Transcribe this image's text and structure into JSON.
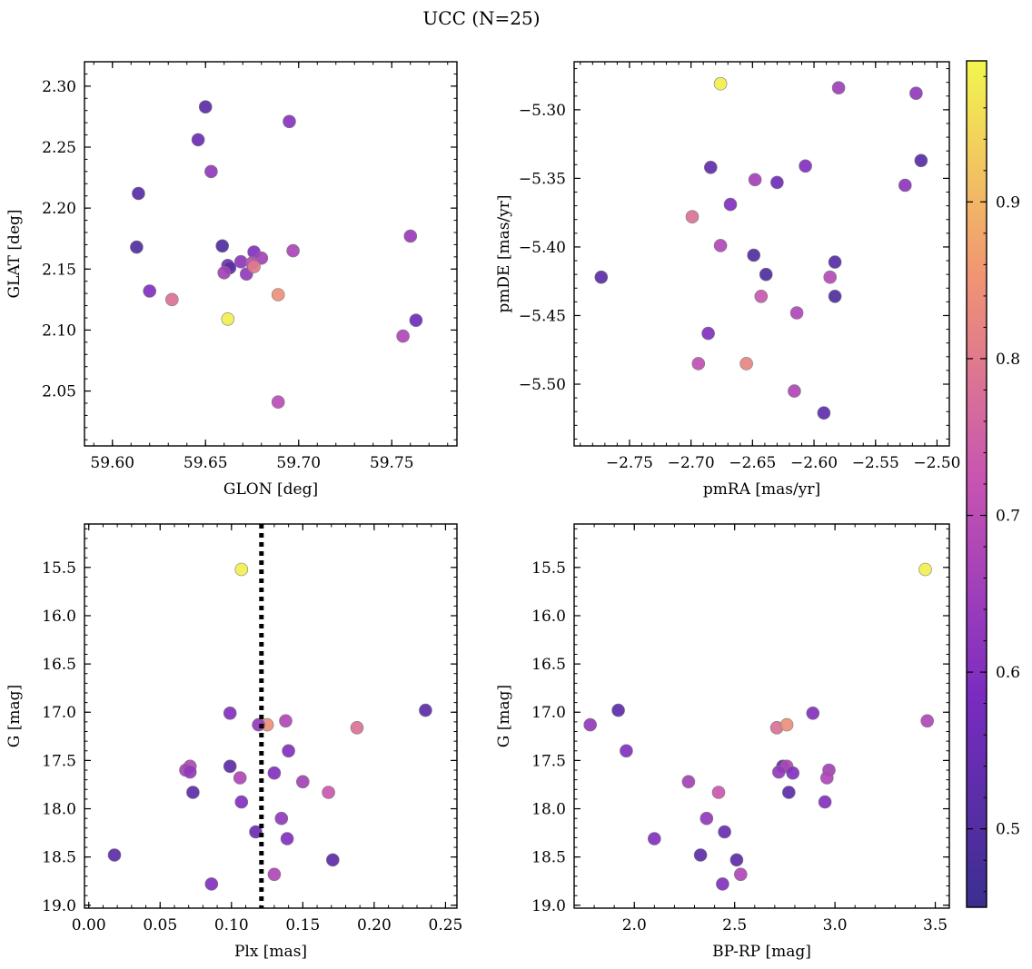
{
  "figure": {
    "title": "UCC (N=25)"
  },
  "colorbar": {
    "colormap": "plasma",
    "range": [
      0.45,
      0.99
    ],
    "ticks": [
      0.5,
      0.6,
      0.7,
      0.8,
      0.9
    ],
    "tick_labels": [
      "0.5",
      "0.6",
      "0.7",
      "0.8",
      "0.9"
    ],
    "colors": [
      "#3b2f8f",
      "#7a2cc0",
      "#c653b3",
      "#f19672",
      "#f2f64e"
    ]
  },
  "chart_data": [
    {
      "type": "scatter",
      "id": "glon-glat",
      "xlabel": "GLON [deg]",
      "ylabel": "GLAT [deg]",
      "xlim": [
        59.585,
        59.785
      ],
      "ylim": [
        2.005,
        2.32
      ],
      "xticks": [
        59.6,
        59.65,
        59.7,
        59.75
      ],
      "xtick_labels": [
        "59.60",
        "59.65",
        "59.70",
        "59.75"
      ],
      "yticks": [
        2.05,
        2.1,
        2.15,
        2.2,
        2.25,
        2.3
      ],
      "ytick_labels": [
        "2.05",
        "2.10",
        "2.15",
        "2.20",
        "2.25",
        "2.30"
      ],
      "points": [
        {
          "x": 59.65,
          "y": 2.283,
          "c": 0.52
        },
        {
          "x": 59.646,
          "y": 2.256,
          "c": 0.55
        },
        {
          "x": 59.695,
          "y": 2.271,
          "c": 0.61
        },
        {
          "x": 59.653,
          "y": 2.23,
          "c": 0.63
        },
        {
          "x": 59.614,
          "y": 2.212,
          "c": 0.51
        },
        {
          "x": 59.613,
          "y": 2.168,
          "c": 0.5
        },
        {
          "x": 59.659,
          "y": 2.169,
          "c": 0.49
        },
        {
          "x": 59.676,
          "y": 2.164,
          "c": 0.6
        },
        {
          "x": 59.68,
          "y": 2.159,
          "c": 0.66
        },
        {
          "x": 59.697,
          "y": 2.165,
          "c": 0.67
        },
        {
          "x": 59.669,
          "y": 2.156,
          "c": 0.62
        },
        {
          "x": 59.662,
          "y": 2.153,
          "c": 0.56
        },
        {
          "x": 59.663,
          "y": 2.151,
          "c": 0.52
        },
        {
          "x": 59.66,
          "y": 2.147,
          "c": 0.66
        },
        {
          "x": 59.672,
          "y": 2.146,
          "c": 0.63
        },
        {
          "x": 59.675,
          "y": 2.155,
          "c": 0.7
        },
        {
          "x": 59.676,
          "y": 2.152,
          "c": 0.8
        },
        {
          "x": 59.62,
          "y": 2.132,
          "c": 0.6
        },
        {
          "x": 59.632,
          "y": 2.125,
          "c": 0.78
        },
        {
          "x": 59.689,
          "y": 2.129,
          "c": 0.84
        },
        {
          "x": 59.662,
          "y": 2.109,
          "c": 0.98
        },
        {
          "x": 59.76,
          "y": 2.177,
          "c": 0.64
        },
        {
          "x": 59.763,
          "y": 2.108,
          "c": 0.56
        },
        {
          "x": 59.756,
          "y": 2.095,
          "c": 0.68
        },
        {
          "x": 59.689,
          "y": 2.041,
          "c": 0.7
        }
      ]
    },
    {
      "type": "scatter",
      "id": "pmra-pmde",
      "xlabel": "pmRA [mas/yr]",
      "ylabel": "pmDE [mas/yr]",
      "xlim": [
        -2.795,
        -2.49
      ],
      "ylim": [
        -5.545,
        -5.265
      ],
      "xticks": [
        -2.75,
        -2.7,
        -2.65,
        -2.6,
        -2.55,
        -2.5
      ],
      "xtick_labels": [
        "−2.75",
        "−2.70",
        "−2.65",
        "−2.60",
        "−2.55",
        "−2.50"
      ],
      "yticks": [
        -5.5,
        -5.45,
        -5.4,
        -5.35,
        -5.3
      ],
      "ytick_labels": [
        "−5.50",
        "−5.45",
        "−5.40",
        "−5.35",
        "−5.30"
      ],
      "points": [
        {
          "x": -2.676,
          "y": -5.281,
          "c": 0.98
        },
        {
          "x": -2.58,
          "y": -5.284,
          "c": 0.65
        },
        {
          "x": -2.517,
          "y": -5.288,
          "c": 0.63
        },
        {
          "x": -2.513,
          "y": -5.337,
          "c": 0.51
        },
        {
          "x": -2.526,
          "y": -5.355,
          "c": 0.62
        },
        {
          "x": -2.684,
          "y": -5.342,
          "c": 0.53
        },
        {
          "x": -2.607,
          "y": -5.341,
          "c": 0.6
        },
        {
          "x": -2.648,
          "y": -5.351,
          "c": 0.66
        },
        {
          "x": -2.63,
          "y": -5.353,
          "c": 0.56
        },
        {
          "x": -2.668,
          "y": -5.369,
          "c": 0.6
        },
        {
          "x": -2.699,
          "y": -5.378,
          "c": 0.78
        },
        {
          "x": -2.676,
          "y": -5.399,
          "c": 0.68
        },
        {
          "x": -2.649,
          "y": -5.406,
          "c": 0.5
        },
        {
          "x": -2.583,
          "y": -5.411,
          "c": 0.51
        },
        {
          "x": -2.639,
          "y": -5.42,
          "c": 0.49
        },
        {
          "x": -2.773,
          "y": -5.422,
          "c": 0.52
        },
        {
          "x": -2.587,
          "y": -5.422,
          "c": 0.69
        },
        {
          "x": -2.583,
          "y": -5.436,
          "c": 0.49
        },
        {
          "x": -2.643,
          "y": -5.436,
          "c": 0.73
        },
        {
          "x": -2.614,
          "y": -5.448,
          "c": 0.68
        },
        {
          "x": -2.686,
          "y": -5.463,
          "c": 0.6
        },
        {
          "x": -2.694,
          "y": -5.485,
          "c": 0.71
        },
        {
          "x": -2.655,
          "y": -5.485,
          "c": 0.82
        },
        {
          "x": -2.616,
          "y": -5.505,
          "c": 0.68
        },
        {
          "x": -2.592,
          "y": -5.521,
          "c": 0.53
        }
      ]
    },
    {
      "type": "scatter",
      "id": "plx-g",
      "xlabel": "Plx [mas]",
      "ylabel": "G [mag]",
      "xlim": [
        -0.003,
        0.258
      ],
      "ylim": [
        19.03,
        15.05
      ],
      "y_inverted": true,
      "xticks": [
        0,
        0.05,
        0.1,
        0.15,
        0.2,
        0.25
      ],
      "xtick_labels": [
        "0.00",
        "0.05",
        "0.10",
        "0.15",
        "0.20",
        "0.25"
      ],
      "yticks": [
        15.5,
        16,
        16.5,
        17,
        17.5,
        18,
        18.5,
        19
      ],
      "ytick_labels": [
        "15.5",
        "16.0",
        "16.5",
        "17.0",
        "17.5",
        "18.0",
        "18.5",
        "19.0"
      ],
      "vline": {
        "x": 0.121,
        "style": "dotted",
        "color": "#000000"
      },
      "points": [
        {
          "x": 0.107,
          "y": 15.52,
          "c": 0.98
        },
        {
          "x": 0.236,
          "y": 16.98,
          "c": 0.52
        },
        {
          "x": 0.099,
          "y": 17.01,
          "c": 0.6
        },
        {
          "x": 0.138,
          "y": 17.09,
          "c": 0.68
        },
        {
          "x": 0.188,
          "y": 17.16,
          "c": 0.78
        },
        {
          "x": 0.125,
          "y": 17.13,
          "c": 0.84
        },
        {
          "x": 0.119,
          "y": 17.13,
          "c": 0.63
        },
        {
          "x": 0.14,
          "y": 17.4,
          "c": 0.6
        },
        {
          "x": 0.099,
          "y": 17.56,
          "c": 0.52
        },
        {
          "x": 0.071,
          "y": 17.56,
          "c": 0.68
        },
        {
          "x": 0.068,
          "y": 17.6,
          "c": 0.66
        },
        {
          "x": 0.071,
          "y": 17.62,
          "c": 0.63
        },
        {
          "x": 0.13,
          "y": 17.63,
          "c": 0.6
        },
        {
          "x": 0.106,
          "y": 17.68,
          "c": 0.68
        },
        {
          "x": 0.15,
          "y": 17.72,
          "c": 0.66
        },
        {
          "x": 0.073,
          "y": 17.83,
          "c": 0.52
        },
        {
          "x": 0.168,
          "y": 17.83,
          "c": 0.73
        },
        {
          "x": 0.107,
          "y": 17.93,
          "c": 0.6
        },
        {
          "x": 0.135,
          "y": 18.1,
          "c": 0.63
        },
        {
          "x": 0.117,
          "y": 18.24,
          "c": 0.55
        },
        {
          "x": 0.139,
          "y": 18.31,
          "c": 0.6
        },
        {
          "x": 0.018,
          "y": 18.48,
          "c": 0.52
        },
        {
          "x": 0.171,
          "y": 18.53,
          "c": 0.52
        },
        {
          "x": 0.13,
          "y": 18.68,
          "c": 0.68
        },
        {
          "x": 0.086,
          "y": 18.78,
          "c": 0.6
        }
      ]
    },
    {
      "type": "scatter",
      "id": "bprp-g",
      "xlabel": "BP-RP [mag]",
      "ylabel": "G [mag]",
      "xlim": [
        1.7,
        3.57
      ],
      "ylim": [
        19.03,
        15.05
      ],
      "y_inverted": true,
      "xticks": [
        2,
        2.5,
        3,
        3.5
      ],
      "xtick_labels": [
        "2.0",
        "2.5",
        "3.0",
        "3.5"
      ],
      "yticks": [
        15.5,
        16,
        16.5,
        17,
        17.5,
        18,
        18.5,
        19
      ],
      "ytick_labels": [
        "15.5",
        "16.0",
        "16.5",
        "17.0",
        "17.5",
        "18.0",
        "18.5",
        "19.0"
      ],
      "points": [
        {
          "x": 3.45,
          "y": 15.52,
          "c": 0.98
        },
        {
          "x": 1.92,
          "y": 16.98,
          "c": 0.52
        },
        {
          "x": 2.89,
          "y": 17.01,
          "c": 0.6
        },
        {
          "x": 3.46,
          "y": 17.09,
          "c": 0.68
        },
        {
          "x": 1.78,
          "y": 17.13,
          "c": 0.63
        },
        {
          "x": 2.71,
          "y": 17.16,
          "c": 0.78
        },
        {
          "x": 2.76,
          "y": 17.13,
          "c": 0.84
        },
        {
          "x": 1.96,
          "y": 17.4,
          "c": 0.6
        },
        {
          "x": 2.74,
          "y": 17.56,
          "c": 0.52
        },
        {
          "x": 2.76,
          "y": 17.56,
          "c": 0.68
        },
        {
          "x": 2.97,
          "y": 17.6,
          "c": 0.66
        },
        {
          "x": 2.72,
          "y": 17.62,
          "c": 0.63
        },
        {
          "x": 2.79,
          "y": 17.63,
          "c": 0.6
        },
        {
          "x": 2.96,
          "y": 17.68,
          "c": 0.68
        },
        {
          "x": 2.27,
          "y": 17.72,
          "c": 0.66
        },
        {
          "x": 2.77,
          "y": 17.83,
          "c": 0.52
        },
        {
          "x": 2.42,
          "y": 17.83,
          "c": 0.73
        },
        {
          "x": 2.95,
          "y": 17.93,
          "c": 0.6
        },
        {
          "x": 2.36,
          "y": 18.1,
          "c": 0.63
        },
        {
          "x": 2.45,
          "y": 18.24,
          "c": 0.55
        },
        {
          "x": 2.1,
          "y": 18.31,
          "c": 0.6
        },
        {
          "x": 2.33,
          "y": 18.48,
          "c": 0.52
        },
        {
          "x": 2.51,
          "y": 18.53,
          "c": 0.52
        },
        {
          "x": 2.53,
          "y": 18.68,
          "c": 0.68
        },
        {
          "x": 2.44,
          "y": 18.78,
          "c": 0.6
        }
      ]
    }
  ]
}
